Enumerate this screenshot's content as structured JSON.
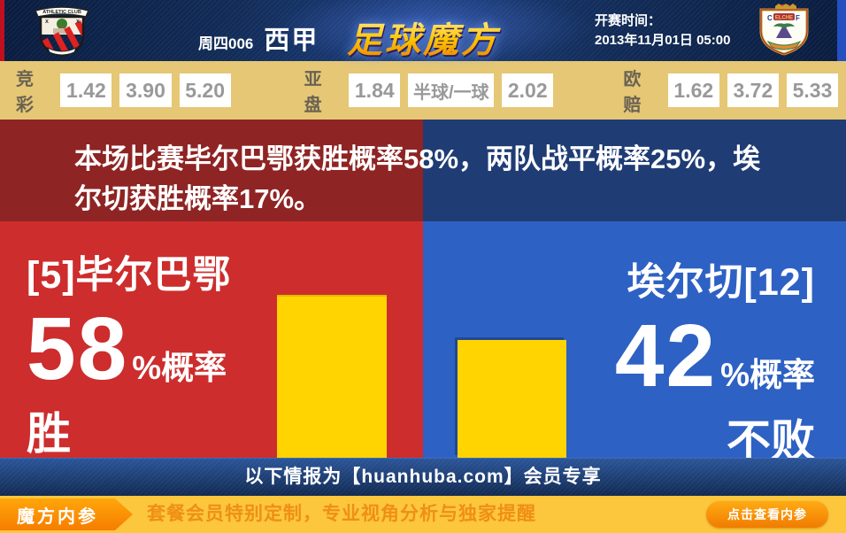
{
  "header": {
    "match_label": "周四006",
    "league": "西甲",
    "site_logo": "足球魔方",
    "kickoff_label": "开赛时间：",
    "kickoff_time": "2013年11月01日 05:00",
    "home_badge": "athletic-club",
    "away_badge": "elche-cf"
  },
  "odds": {
    "groups": [
      {
        "label": "竞彩",
        "values": [
          "1.42",
          "3.90",
          "5.20"
        ]
      },
      {
        "label": "亚盘",
        "values": [
          "1.84",
          "半球/一球",
          "2.02"
        ]
      },
      {
        "label": "欧赔",
        "values": [
          "1.62",
          "3.72",
          "5.33"
        ]
      }
    ]
  },
  "summary": {
    "text": "本场比赛毕尔巴鄂获胜概率58%，两队战平概率25%，埃尔切获胜概率17%。"
  },
  "panels": {
    "home": {
      "team": "[5]毕尔巴鄂",
      "percent": "58",
      "percent_suffix": "%概率",
      "outcome": "胜"
    },
    "away": {
      "team": "埃尔切[12]",
      "percent": "42",
      "percent_suffix": "%概率",
      "outcome": "不败"
    }
  },
  "member_bar": {
    "text": "以下情报为【huanhuba.com】会员专享"
  },
  "bottom_bar": {
    "badge": "魔方内参",
    "promo": "套餐会员特别定制，专业视角分析与独家提醒",
    "cta": "点击查看内参"
  },
  "colors": {
    "home_red": "#cd2d2d",
    "home_dark_red": "#8e2423",
    "away_blue": "#2e61c4",
    "away_dark_blue": "#1f3c74",
    "bar_yellow": "#ffd400",
    "odds_bg_tan": "#e5c775",
    "gold_bar": "#fcc63d",
    "accent_orange": "#f67d00",
    "header_navy": "#122c58"
  },
  "chart_data": {
    "type": "bar",
    "categories": [
      "毕尔巴鄂 胜",
      "埃尔切 不败"
    ],
    "values": [
      58,
      42
    ],
    "unit": "%",
    "title": "",
    "xlabel": "",
    "ylabel": "概率",
    "ylim": [
      0,
      100
    ],
    "bar_color": "#ffd400",
    "annotations": [
      "58%概率 胜",
      "42%概率 不败"
    ],
    "legend": "none",
    "grid": false
  }
}
